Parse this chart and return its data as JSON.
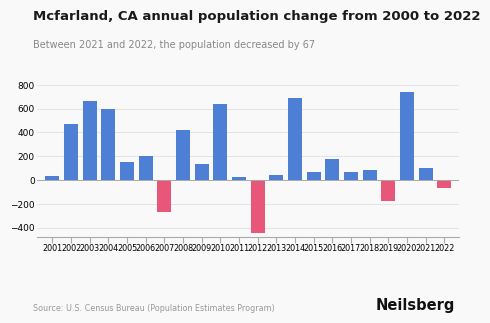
{
  "title": "Mcfarland, CA annual population change from 2000 to 2022",
  "subtitle": "Between 2021 and 2022, the population decreased by 67",
  "source": "Source: U.S. Census Bureau (Population Estimates Program)",
  "brand": "Neilsberg",
  "years": [
    2001,
    2002,
    2003,
    2004,
    2005,
    2006,
    2007,
    2008,
    2009,
    2010,
    2011,
    2012,
    2013,
    2014,
    2015,
    2016,
    2017,
    2018,
    2019,
    2020,
    2021,
    2022
  ],
  "values": [
    30,
    470,
    660,
    595,
    155,
    205,
    -265,
    420,
    135,
    635,
    25,
    -445,
    45,
    685,
    65,
    180,
    65,
    85,
    -175,
    740,
    100,
    -67
  ],
  "bar_colors_positive": "#4d7fd4",
  "bar_colors_negative": "#e8567a",
  "background_color": "#f9f9f9",
  "ylim": [
    -480,
    900
  ],
  "yticks": [
    -400,
    -200,
    0,
    200,
    400,
    600,
    800
  ],
  "title_fontsize": 9.5,
  "subtitle_fontsize": 7.0,
  "source_fontsize": 5.8,
  "brand_fontsize": 10.5,
  "tick_fontsize": 5.8,
  "ytick_fontsize": 6.5
}
